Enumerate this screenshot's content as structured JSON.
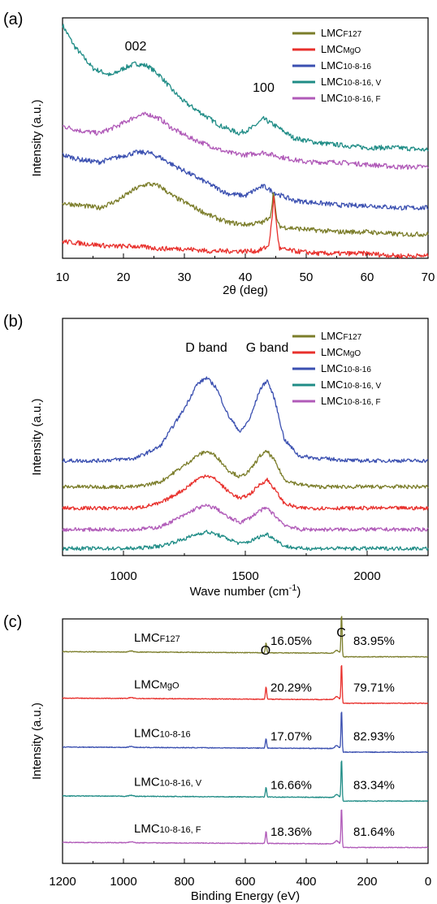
{
  "colors": {
    "LMC_F127": "#7b7d2a",
    "LMC_MgO": "#e8302c",
    "LMC_10-8-16": "#3a4fb0",
    "LMC_10-8-16_V": "#1f8c86",
    "LMC_10-8-16_F": "#b05ab8"
  },
  "chart_data": [
    {
      "panel": "(a)",
      "type": "line",
      "xlabel": "2θ (deg)",
      "ylabel": "Intensity (a.u.)",
      "xlim": [
        10,
        70
      ],
      "xticks": [
        "10",
        "20",
        "30",
        "40",
        "50",
        "60",
        "70"
      ],
      "annotations": [
        "002",
        "100"
      ],
      "legend": [
        {
          "base": "LMC",
          "sub": "F127",
          "key": "LMC_F127"
        },
        {
          "base": "LMC",
          "sub": "MgO",
          "key": "LMC_MgO"
        },
        {
          "base": "LMC",
          "sub": "10-8-16",
          "key": "LMC_10-8-16"
        },
        {
          "base": "LMC",
          "sub": "10-8-16, V",
          "key": "LMC_10-8-16_V"
        },
        {
          "base": "LMC",
          "sub": "10-8-16, F",
          "key": "LMC_10-8-16_F"
        }
      ],
      "legend_position": "top-right",
      "series": [
        {
          "key": "LMC_10-8-16_V",
          "x": [
            10,
            12,
            15,
            18,
            20,
            22,
            24,
            26,
            28,
            30,
            33,
            36,
            39,
            41,
            43,
            45,
            48,
            52,
            56,
            60,
            65,
            70
          ],
          "y": [
            0.97,
            0.88,
            0.79,
            0.76,
            0.79,
            0.81,
            0.8,
            0.76,
            0.7,
            0.65,
            0.6,
            0.55,
            0.52,
            0.54,
            0.58,
            0.55,
            0.5,
            0.48,
            0.47,
            0.46,
            0.46,
            0.45
          ]
        },
        {
          "key": "LMC_10-8-16_F",
          "x": [
            10,
            13,
            16,
            19,
            22,
            24,
            26,
            28,
            31,
            34,
            37,
            40,
            43,
            46,
            50,
            55,
            60,
            65,
            70
          ],
          "y": [
            0.55,
            0.53,
            0.52,
            0.55,
            0.59,
            0.6,
            0.58,
            0.54,
            0.5,
            0.47,
            0.44,
            0.43,
            0.44,
            0.42,
            0.4,
            0.4,
            0.39,
            0.38,
            0.38
          ]
        },
        {
          "key": "LMC_10-8-16",
          "x": [
            10,
            13,
            16,
            19,
            22,
            24,
            26,
            28,
            31,
            34,
            37,
            40,
            42,
            43,
            45,
            48,
            52,
            56,
            60,
            65,
            70
          ],
          "y": [
            0.43,
            0.41,
            0.4,
            0.42,
            0.44,
            0.44,
            0.42,
            0.39,
            0.35,
            0.31,
            0.27,
            0.26,
            0.29,
            0.3,
            0.27,
            0.24,
            0.23,
            0.22,
            0.22,
            0.21,
            0.21
          ]
        },
        {
          "key": "LMC_F127",
          "x": [
            10,
            13,
            16,
            19,
            22,
            24,
            26,
            28,
            31,
            34,
            37,
            40,
            43,
            44.2,
            44.6,
            45,
            45.4,
            46,
            50,
            55,
            60,
            65,
            70
          ],
          "y": [
            0.23,
            0.22,
            0.21,
            0.24,
            0.29,
            0.31,
            0.3,
            0.26,
            0.22,
            0.18,
            0.15,
            0.14,
            0.15,
            0.18,
            0.28,
            0.19,
            0.14,
            0.13,
            0.12,
            0.11,
            0.11,
            0.1,
            0.1
          ]
        },
        {
          "key": "LMC_MgO",
          "x": [
            10,
            14,
            18,
            22,
            26,
            30,
            34,
            38,
            42,
            43.8,
            44.3,
            44.7,
            45.1,
            45.6,
            48,
            52,
            56,
            60,
            65,
            70
          ],
          "y": [
            0.07,
            0.06,
            0.05,
            0.05,
            0.04,
            0.04,
            0.03,
            0.03,
            0.03,
            0.05,
            0.14,
            0.26,
            0.14,
            0.04,
            0.03,
            0.02,
            0.02,
            0.02,
            0.01,
            0.01
          ]
        }
      ]
    },
    {
      "panel": "(b)",
      "type": "line",
      "xlabel": "Wave number (cm",
      "xlabel_sup": "-1",
      "xlabel_end": ")",
      "ylabel": "Intensity (a.u.)",
      "xlim": [
        750,
        2250
      ],
      "xticks": [
        "1000",
        "1500",
        "2000"
      ],
      "annotations": [
        "D band",
        "G band"
      ],
      "legend": [
        {
          "base": "LMC",
          "sub": "F127",
          "key": "LMC_F127"
        },
        {
          "base": "LMC",
          "sub": "MgO",
          "key": "LMC_MgO"
        },
        {
          "base": "LMC",
          "sub": "10-8-16",
          "key": "LMC_10-8-16"
        },
        {
          "base": "LMC",
          "sub": "10-8-16, V",
          "key": "LMC_10-8-16_V"
        },
        {
          "base": "LMC",
          "sub": "10-8-16, F",
          "key": "LMC_10-8-16_F"
        }
      ],
      "legend_position": "top-right",
      "series": [
        {
          "key": "LMC_10-8-16",
          "x": [
            750,
            900,
            1050,
            1150,
            1250,
            1300,
            1340,
            1380,
            1430,
            1480,
            1520,
            1560,
            1590,
            1620,
            1660,
            1720,
            1800,
            1950,
            2100,
            2250
          ],
          "y": [
            0.4,
            0.4,
            0.41,
            0.46,
            0.62,
            0.72,
            0.75,
            0.71,
            0.59,
            0.52,
            0.58,
            0.7,
            0.74,
            0.66,
            0.49,
            0.42,
            0.41,
            0.4,
            0.4,
            0.4
          ]
        },
        {
          "key": "LMC_F127",
          "x": [
            750,
            900,
            1050,
            1150,
            1250,
            1300,
            1340,
            1380,
            1430,
            1480,
            1520,
            1560,
            1590,
            1620,
            1660,
            1720,
            1800,
            1950,
            2100,
            2250
          ],
          "y": [
            0.29,
            0.29,
            0.29,
            0.31,
            0.38,
            0.42,
            0.44,
            0.42,
            0.36,
            0.33,
            0.36,
            0.42,
            0.44,
            0.4,
            0.32,
            0.3,
            0.29,
            0.29,
            0.29,
            0.29
          ]
        },
        {
          "key": "LMC_MgO",
          "x": [
            750,
            900,
            1050,
            1150,
            1250,
            1300,
            1340,
            1380,
            1430,
            1480,
            1520,
            1560,
            1590,
            1620,
            1660,
            1720,
            1800,
            1950,
            2100,
            2250
          ],
          "y": [
            0.2,
            0.2,
            0.2,
            0.22,
            0.28,
            0.32,
            0.34,
            0.32,
            0.27,
            0.24,
            0.26,
            0.3,
            0.32,
            0.28,
            0.22,
            0.2,
            0.2,
            0.2,
            0.2,
            0.2
          ]
        },
        {
          "key": "LMC_10-8-16_F",
          "x": [
            750,
            900,
            1050,
            1150,
            1250,
            1300,
            1340,
            1380,
            1430,
            1480,
            1520,
            1560,
            1590,
            1620,
            1660,
            1720,
            1800,
            1950,
            2100,
            2250
          ],
          "y": [
            0.11,
            0.11,
            0.11,
            0.12,
            0.17,
            0.2,
            0.21,
            0.2,
            0.16,
            0.14,
            0.16,
            0.19,
            0.2,
            0.17,
            0.13,
            0.11,
            0.11,
            0.11,
            0.11,
            0.11
          ]
        },
        {
          "key": "LMC_10-8-16_V",
          "x": [
            750,
            900,
            1050,
            1150,
            1250,
            1300,
            1340,
            1380,
            1430,
            1480,
            1520,
            1560,
            1590,
            1620,
            1660,
            1720,
            1800,
            1950,
            2100,
            2250
          ],
          "y": [
            0.03,
            0.03,
            0.03,
            0.04,
            0.07,
            0.09,
            0.1,
            0.09,
            0.07,
            0.05,
            0.06,
            0.08,
            0.09,
            0.07,
            0.04,
            0.03,
            0.03,
            0.03,
            0.03,
            0.03
          ]
        }
      ]
    },
    {
      "panel": "(c)",
      "type": "line",
      "xlabel": "Binding Energy (eV)",
      "ylabel": "Intensity (a.u.)",
      "xlim": [
        1200,
        0
      ],
      "xticks": [
        "1200",
        "1000",
        "800",
        "600",
        "400",
        "200",
        "0"
      ],
      "annotations": [
        "O",
        "C"
      ],
      "series": [
        {
          "key": "LMC_F127",
          "base": "LMC",
          "sub": "F127",
          "o_pct": "16.05%",
          "c_pct": "83.95%",
          "baseline": 0.86,
          "opeak": 0.04,
          "cpeak": 0.17,
          "tail": 0.015
        },
        {
          "key": "LMC_MgO",
          "base": "LMC",
          "sub": "MgO",
          "o_pct": "20.29%",
          "c_pct": "79.71%",
          "baseline": 0.67,
          "opeak": 0.05,
          "cpeak": 0.16,
          "tail": 0.015
        },
        {
          "key": "LMC_10-8-16",
          "base": "LMC",
          "sub": "10-8-16",
          "o_pct": "17.07%",
          "c_pct": "82.93%",
          "baseline": 0.47,
          "opeak": 0.04,
          "cpeak": 0.17,
          "tail": 0.015
        },
        {
          "key": "LMC_10-8-16_V",
          "base": "LMC",
          "sub": "10-8-16, V",
          "o_pct": "16.66%",
          "c_pct": "83.34%",
          "baseline": 0.27,
          "opeak": 0.04,
          "cpeak": 0.17,
          "tail": 0.015
        },
        {
          "key": "LMC_10-8-16_F",
          "base": "LMC",
          "sub": "10-8-16, F",
          "o_pct": "18.36%",
          "c_pct": "81.64%",
          "baseline": 0.08,
          "opeak": 0.05,
          "cpeak": 0.16,
          "tail": 0.015
        }
      ]
    }
  ]
}
